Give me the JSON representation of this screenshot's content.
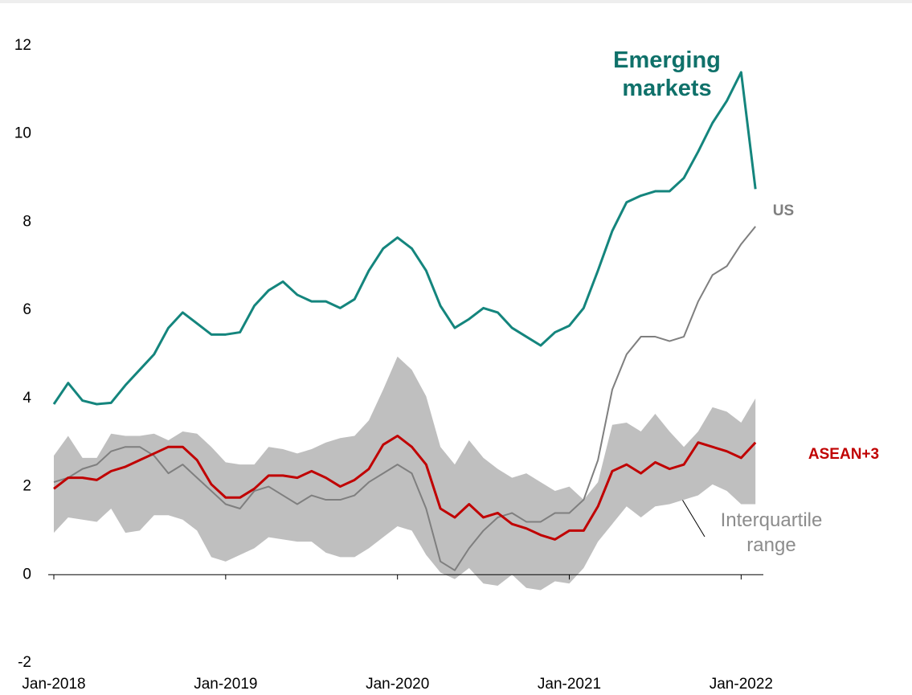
{
  "chart_data": {
    "type": "line",
    "categories": [
      "Jan-2018",
      null,
      null,
      null,
      null,
      null,
      null,
      null,
      null,
      null,
      null,
      null,
      "Jan-2019",
      null,
      null,
      null,
      null,
      null,
      null,
      null,
      null,
      null,
      null,
      null,
      "Jan-2020",
      null,
      null,
      null,
      null,
      null,
      null,
      null,
      null,
      null,
      null,
      null,
      "Jan-2021",
      null,
      null,
      null,
      null,
      null,
      null,
      null,
      null,
      null,
      null,
      null,
      "Jan-2022",
      null
    ],
    "ylim": [
      -2,
      12
    ],
    "yticks": [
      -2,
      0,
      2,
      4,
      6,
      8,
      10,
      12
    ],
    "band": {
      "name": "Interquartile range",
      "color": "#bfbfbf",
      "high": [
        2.7,
        3.15,
        2.65,
        2.65,
        3.2,
        3.15,
        3.15,
        3.2,
        3.05,
        3.25,
        3.2,
        2.9,
        2.55,
        2.5,
        2.5,
        2.9,
        2.85,
        2.75,
        2.85,
        3.0,
        3.1,
        3.15,
        3.5,
        4.2,
        4.95,
        4.65,
        4.05,
        2.9,
        2.5,
        3.05,
        2.65,
        2.4,
        2.2,
        2.3,
        2.1,
        1.9,
        2.0,
        1.7,
        2.1,
        3.4,
        3.45,
        3.25,
        3.65,
        3.25,
        2.9,
        3.25,
        3.8,
        3.7,
        3.45,
        4.0
      ],
      "low": [
        0.95,
        1.3,
        1.25,
        1.2,
        1.5,
        0.95,
        1.0,
        1.35,
        1.35,
        1.25,
        1.0,
        0.4,
        0.3,
        0.45,
        0.6,
        0.85,
        0.8,
        0.75,
        0.75,
        0.5,
        0.4,
        0.4,
        0.6,
        0.85,
        1.1,
        1.0,
        0.45,
        0.05,
        -0.1,
        0.15,
        -0.2,
        -0.25,
        0.0,
        -0.3,
        -0.35,
        -0.15,
        -0.2,
        0.15,
        0.75,
        1.15,
        1.55,
        1.3,
        1.55,
        1.6,
        1.7,
        1.8,
        2.05,
        1.9,
        1.6,
        1.6
      ]
    },
    "series": [
      {
        "name": "Emerging markets",
        "color": "#14857d",
        "width": 3,
        "values": [
          3.87,
          4.35,
          3.95,
          3.87,
          3.9,
          4.3,
          4.65,
          5.0,
          5.6,
          5.95,
          5.7,
          5.45,
          5.45,
          5.5,
          6.1,
          6.45,
          6.65,
          6.35,
          6.2,
          6.2,
          6.05,
          6.25,
          6.9,
          7.4,
          7.65,
          7.4,
          6.9,
          6.1,
          5.6,
          5.8,
          6.05,
          5.95,
          5.6,
          5.4,
          5.2,
          5.5,
          5.65,
          6.05,
          6.9,
          7.8,
          8.45,
          8.6,
          8.7,
          8.7,
          9.0,
          9.6,
          10.25,
          10.75,
          11.4,
          8.75
        ]
      },
      {
        "name": "US",
        "color": "#7f7f7f",
        "width": 2,
        "values": [
          2.1,
          2.2,
          2.4,
          2.5,
          2.8,
          2.9,
          2.9,
          2.7,
          2.3,
          2.5,
          2.2,
          1.9,
          1.6,
          1.5,
          1.9,
          2.0,
          1.8,
          1.6,
          1.8,
          1.7,
          1.7,
          1.8,
          2.1,
          2.3,
          2.5,
          2.3,
          1.5,
          0.3,
          0.1,
          0.6,
          1.0,
          1.3,
          1.4,
          1.2,
          1.2,
          1.4,
          1.4,
          1.7,
          2.6,
          4.2,
          5.0,
          5.4,
          5.4,
          5.3,
          5.4,
          6.2,
          6.8,
          7.0,
          7.5,
          7.9
        ]
      },
      {
        "name": "ASEAN+3",
        "color": "#c00000",
        "width": 3,
        "values": [
          1.95,
          2.2,
          2.2,
          2.15,
          2.35,
          2.45,
          2.6,
          2.75,
          2.9,
          2.9,
          2.6,
          2.05,
          1.75,
          1.75,
          1.95,
          2.25,
          2.25,
          2.2,
          2.35,
          2.2,
          2.0,
          2.15,
          2.4,
          2.95,
          3.15,
          2.9,
          2.5,
          1.5,
          1.3,
          1.6,
          1.3,
          1.4,
          1.15,
          1.05,
          0.9,
          0.8,
          1.0,
          1.0,
          1.55,
          2.35,
          2.5,
          2.3,
          2.55,
          2.4,
          2.5,
          3.0,
          2.9,
          2.8,
          2.65,
          3.0
        ]
      }
    ]
  }
}
